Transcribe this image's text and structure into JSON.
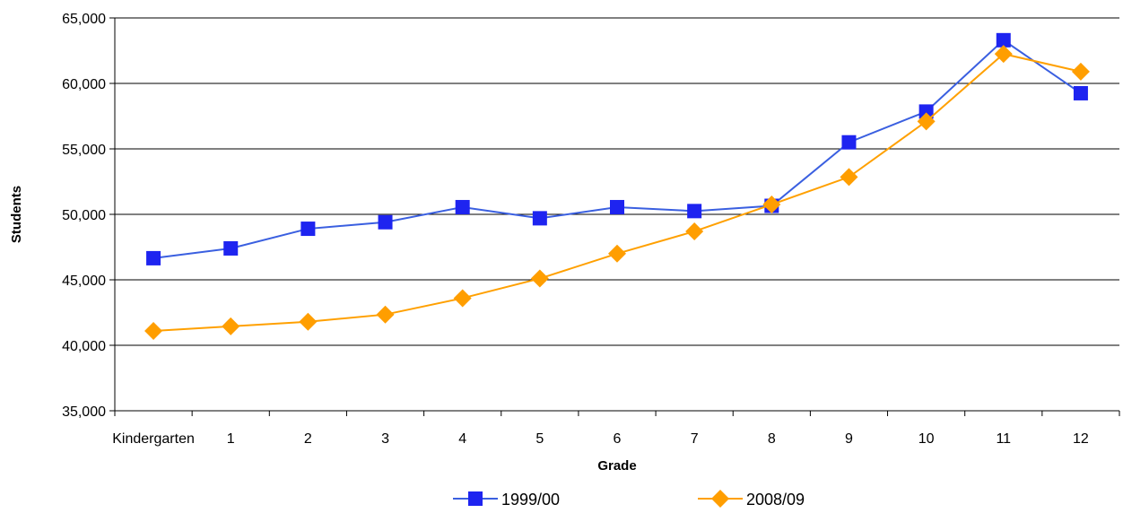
{
  "chart_data": {
    "type": "line",
    "title": "",
    "xlabel": "Grade",
    "ylabel": "Students",
    "categories": [
      "Kindergarten",
      "1",
      "2",
      "3",
      "4",
      "5",
      "6",
      "7",
      "8",
      "9",
      "10",
      "11",
      "12"
    ],
    "ylim": [
      35000,
      65000
    ],
    "yticks": [
      35000,
      40000,
      45000,
      50000,
      55000,
      60000,
      65000
    ],
    "ytick_labels": [
      "35,000",
      "40,000",
      "45,000",
      "50,000",
      "55,000",
      "60,000",
      "65,000"
    ],
    "grid": "horizontal",
    "legend_position": "bottom",
    "series": [
      {
        "name": "1999/00",
        "color": "#1E24F0",
        "line_color": "#3A5FE0",
        "marker": "square",
        "values": [
          46650,
          47400,
          48900,
          49400,
          50550,
          49700,
          50550,
          50250,
          50650,
          55500,
          57850,
          63300,
          59250
        ]
      },
      {
        "name": "2008/09",
        "color": "#FF9E00",
        "line_color": "#FFA000",
        "marker": "diamond",
        "values": [
          41100,
          41450,
          41800,
          42350,
          43600,
          45100,
          47000,
          48700,
          50750,
          52850,
          57100,
          62250,
          60900
        ]
      }
    ]
  }
}
